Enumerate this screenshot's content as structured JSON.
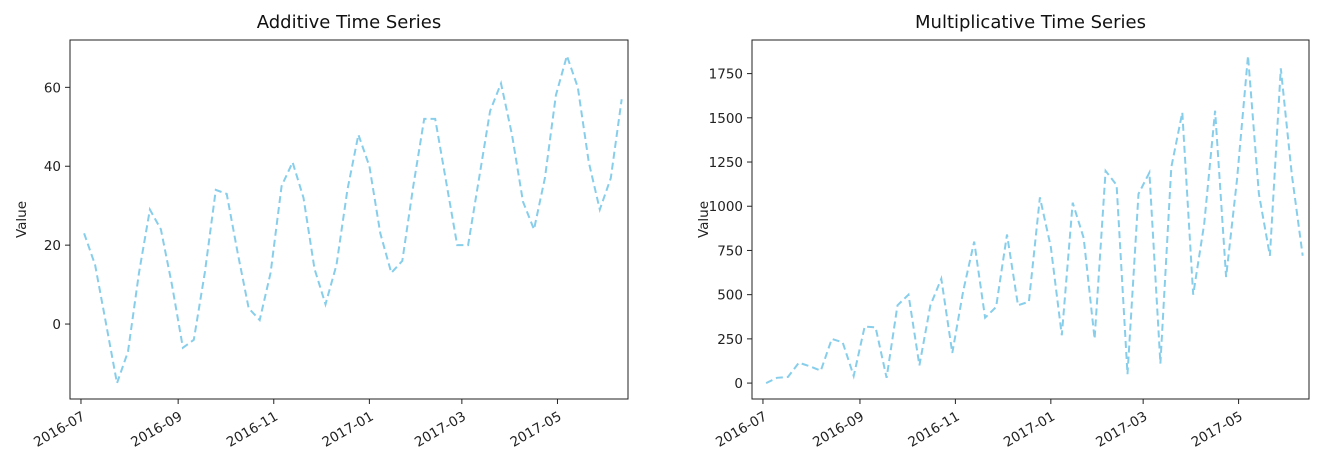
{
  "chart_data": [
    {
      "type": "line",
      "title": "Additive Time Series",
      "xlabel": "",
      "ylabel": "Value",
      "x_ticks": [
        "2016-07",
        "2016-09",
        "2016-11",
        "2017-01",
        "2017-03",
        "2017-05"
      ],
      "y_ticks": [
        0,
        20,
        40,
        60
      ],
      "xlim": [
        "2016-06-24",
        "2017-06-15"
      ],
      "ylim": [
        -19,
        72
      ],
      "grid": false,
      "color": "#87ceeb",
      "linestyle": "dashed",
      "series": [
        {
          "x": [
            "2016-07-03",
            "2016-07-10",
            "2016-07-17",
            "2016-07-24",
            "2016-07-31",
            "2016-08-07",
            "2016-08-14",
            "2016-08-21",
            "2016-08-28",
            "2016-09-04",
            "2016-09-11",
            "2016-09-18",
            "2016-09-25",
            "2016-10-02",
            "2016-10-09",
            "2016-10-16",
            "2016-10-23",
            "2016-10-30",
            "2016-11-06",
            "2016-11-13",
            "2016-11-20",
            "2016-11-27",
            "2016-12-04",
            "2016-12-11",
            "2016-12-18",
            "2016-12-25",
            "2017-01-01",
            "2017-01-08",
            "2017-01-15",
            "2017-01-22",
            "2017-01-29",
            "2017-02-05",
            "2017-02-12",
            "2017-02-19",
            "2017-02-26",
            "2017-03-05",
            "2017-03-12",
            "2017-03-19",
            "2017-03-26",
            "2017-04-02",
            "2017-04-09",
            "2017-04-16",
            "2017-04-23",
            "2017-04-30",
            "2017-05-07",
            "2017-05-14",
            "2017-05-21",
            "2017-05-28",
            "2017-06-04",
            "2017-06-11"
          ],
          "y": [
            23,
            15,
            0,
            -15,
            -7,
            13,
            29,
            24,
            10,
            -6,
            -4,
            13,
            34,
            33,
            18,
            4,
            1,
            13,
            35,
            41,
            32,
            14,
            5,
            15,
            34,
            48,
            40,
            23,
            13,
            16,
            35,
            52,
            52,
            36,
            20,
            20,
            37,
            54,
            61,
            48,
            31,
            24,
            37,
            58,
            68,
            60,
            41,
            29,
            37,
            57
          ]
        }
      ]
    },
    {
      "type": "line",
      "title": "Multiplicative Time Series",
      "xlabel": "",
      "ylabel": "Value",
      "x_ticks": [
        "2016-07",
        "2016-09",
        "2016-11",
        "2017-01",
        "2017-03",
        "2017-05"
      ],
      "y_ticks": [
        0,
        250,
        500,
        750,
        1000,
        1250,
        1500,
        1750
      ],
      "xlim": [
        "2016-06-24",
        "2017-06-15"
      ],
      "ylim": [
        -90,
        1940
      ],
      "grid": false,
      "color": "#87ceeb",
      "linestyle": "dashed",
      "series": [
        {
          "x": [
            "2016-07-03",
            "2016-07-10",
            "2016-07-17",
            "2016-07-24",
            "2016-07-31",
            "2016-08-07",
            "2016-08-14",
            "2016-08-21",
            "2016-08-28",
            "2016-09-04",
            "2016-09-11",
            "2016-09-18",
            "2016-09-25",
            "2016-10-02",
            "2016-10-09",
            "2016-10-16",
            "2016-10-23",
            "2016-10-30",
            "2016-11-06",
            "2016-11-13",
            "2016-11-20",
            "2016-11-27",
            "2016-12-04",
            "2016-12-11",
            "2016-12-18",
            "2016-12-25",
            "2017-01-01",
            "2017-01-08",
            "2017-01-15",
            "2017-01-22",
            "2017-01-29",
            "2017-02-05",
            "2017-02-12",
            "2017-02-19",
            "2017-02-26",
            "2017-03-05",
            "2017-03-12",
            "2017-03-19",
            "2017-03-26",
            "2017-04-02",
            "2017-04-09",
            "2017-04-16",
            "2017-04-23",
            "2017-04-30",
            "2017-05-07",
            "2017-05-14",
            "2017-05-21",
            "2017-05-28",
            "2017-06-04",
            "2017-06-11"
          ],
          "y": [
            0,
            30,
            35,
            115,
            95,
            70,
            250,
            230,
            40,
            320,
            315,
            30,
            440,
            500,
            100,
            440,
            590,
            170,
            520,
            800,
            370,
            430,
            840,
            440,
            460,
            1050,
            770,
            270,
            1020,
            820,
            250,
            1200,
            1120,
            50,
            1070,
            1190,
            110,
            1220,
            1530,
            500,
            900,
            1540,
            600,
            1150,
            1850,
            1070,
            720,
            1780,
            1180,
            720
          ]
        }
      ]
    }
  ]
}
